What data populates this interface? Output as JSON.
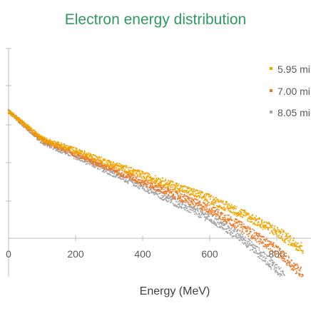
{
  "chart_data": {
    "type": "scatter",
    "title": "Electron energy distribution",
    "xlabel": "Energy (MeV)",
    "ylabel": "",
    "xlim": [
      0,
      900
    ],
    "x_ticks": [
      0,
      200,
      400,
      600,
      800
    ],
    "x_tick_labels": [
      "0",
      "200",
      "400",
      "600",
      "800"
    ],
    "y_scale": "log",
    "grid": false,
    "legend_position": "top-right (clipped at image edge)",
    "series": [
      {
        "name": "5.95 mi",
        "color": "#f0a500",
        "points": [
          [
            0,
            1.0
          ],
          [
            100,
            0.5
          ],
          [
            200,
            0.37
          ],
          [
            300,
            0.27
          ],
          [
            400,
            0.2
          ],
          [
            500,
            0.15
          ],
          [
            600,
            0.11
          ],
          [
            700,
            0.075
          ],
          [
            800,
            0.048
          ],
          [
            880,
            0.031
          ]
        ]
      },
      {
        "name": "7.00 mi",
        "color": "#ec7a27",
        "points": [
          [
            0,
            1.0
          ],
          [
            100,
            0.48
          ],
          [
            200,
            0.34
          ],
          [
            300,
            0.24
          ],
          [
            400,
            0.17
          ],
          [
            500,
            0.12
          ],
          [
            600,
            0.085
          ],
          [
            700,
            0.053
          ],
          [
            800,
            0.03
          ],
          [
            880,
            0.016
          ]
        ]
      },
      {
        "name": "8.05 mi",
        "color": "#a6a6a6",
        "points": [
          [
            0,
            1.0
          ],
          [
            100,
            0.46
          ],
          [
            200,
            0.32
          ],
          [
            300,
            0.22
          ],
          [
            400,
            0.15
          ],
          [
            500,
            0.1
          ],
          [
            600,
            0.068
          ],
          [
            700,
            0.04
          ],
          [
            800,
            0.019
          ],
          [
            880,
            0.008
          ]
        ]
      }
    ]
  }
}
